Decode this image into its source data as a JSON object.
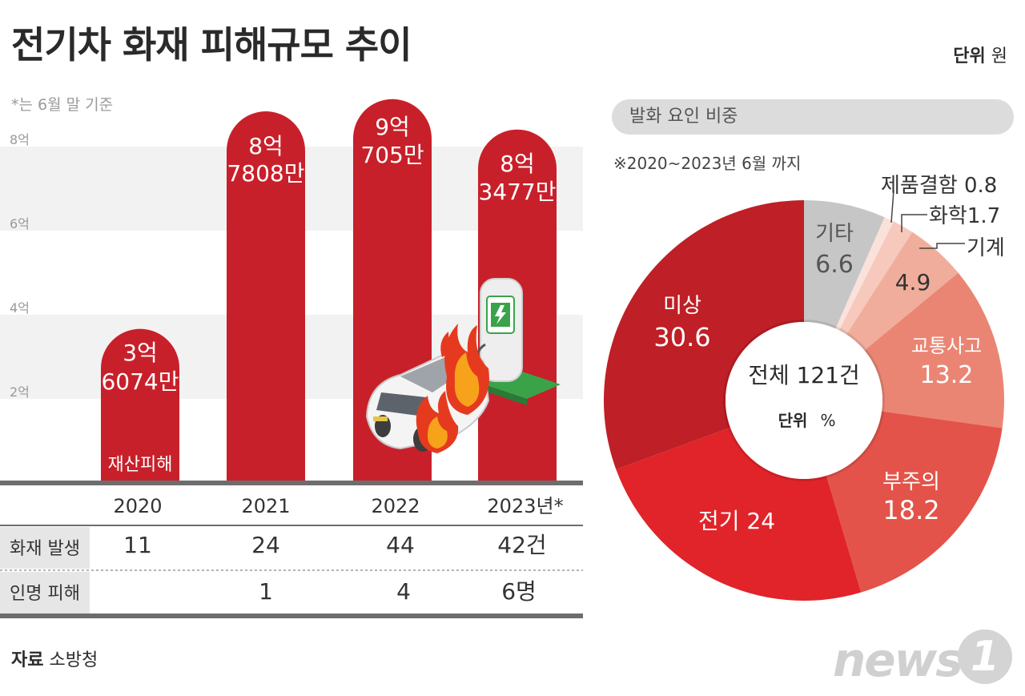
{
  "header": {
    "title": "전기차 화재 피해규모 추이",
    "unit_bold": "단위",
    "unit_value": "원",
    "note": "*는 6월 말 기준"
  },
  "bar_labels": {
    "series_label": "재산피해",
    "values_text": [
      [
        "3억",
        "6074만"
      ],
      [
        "8억",
        "7808만"
      ],
      [
        "9억",
        "705만"
      ],
      [
        "8억",
        "3477만"
      ]
    ]
  },
  "table": {
    "years": [
      "2020",
      "2021",
      "2022",
      "2023년*"
    ],
    "rows": [
      {
        "label": "화재 발생",
        "cells": [
          "11",
          "24",
          "44",
          "42건"
        ]
      },
      {
        "label": "인명 피해",
        "cells": [
          "",
          "1",
          "4",
          "6명"
        ]
      }
    ]
  },
  "donut": {
    "header": "발화 요인 비중",
    "period": "※2020~2023년 6월 까지",
    "center_title": "전체 121건",
    "center_unit_bold": "단위",
    "center_unit": "%",
    "labels": {
      "misang": [
        "미상",
        "30.6"
      ],
      "gita": [
        "기타",
        "6.6"
      ],
      "jepum": "제품결함 0.8",
      "hwahak": "화학1.7",
      "gigye": "기계",
      "gigye_value": "4.9",
      "gyotong": [
        "교통사고",
        "13.2"
      ],
      "bujuui": [
        "부주의",
        "18.2"
      ],
      "jeongi": "전기 24"
    }
  },
  "footer": {
    "source_bold": "자료",
    "source": "소방청",
    "logo_news": "news",
    "logo_one": "1"
  },
  "colors": {
    "bar": "#c8202a",
    "band": "#f2f2f2",
    "table_line": "#6d6d6d",
    "gray_label_bg": "#e6e6e6"
  },
  "chart_data": [
    {
      "type": "bar",
      "title": "전기차 화재 피해규모 추이",
      "categories": [
        "2020",
        "2021",
        "2022",
        "2023년*"
      ],
      "series": [
        {
          "name": "재산피해",
          "values": [
            360740000,
            878080000,
            907050000,
            834770000
          ]
        }
      ],
      "ylabel": "단위 원",
      "yticks": [
        "2억",
        "4억",
        "6억",
        "8억"
      ],
      "ylim": [
        0,
        1000000000
      ],
      "grid": "alternating bands"
    },
    {
      "type": "pie",
      "title": "발화 요인 비중",
      "categories": [
        "미상",
        "전기",
        "부주의",
        "교통사고",
        "기계",
        "화학",
        "제품결함",
        "기타"
      ],
      "values": [
        30.6,
        24,
        18.2,
        13.2,
        4.9,
        1.7,
        0.8,
        6.6
      ],
      "colors": [
        "#bf1f26",
        "#e0242a",
        "#e35349",
        "#ea8574",
        "#f1ad9c",
        "#f6c9bc",
        "#fae2da",
        "#c6c6c6"
      ],
      "center_label": "전체 121건",
      "unit": "%"
    }
  ]
}
